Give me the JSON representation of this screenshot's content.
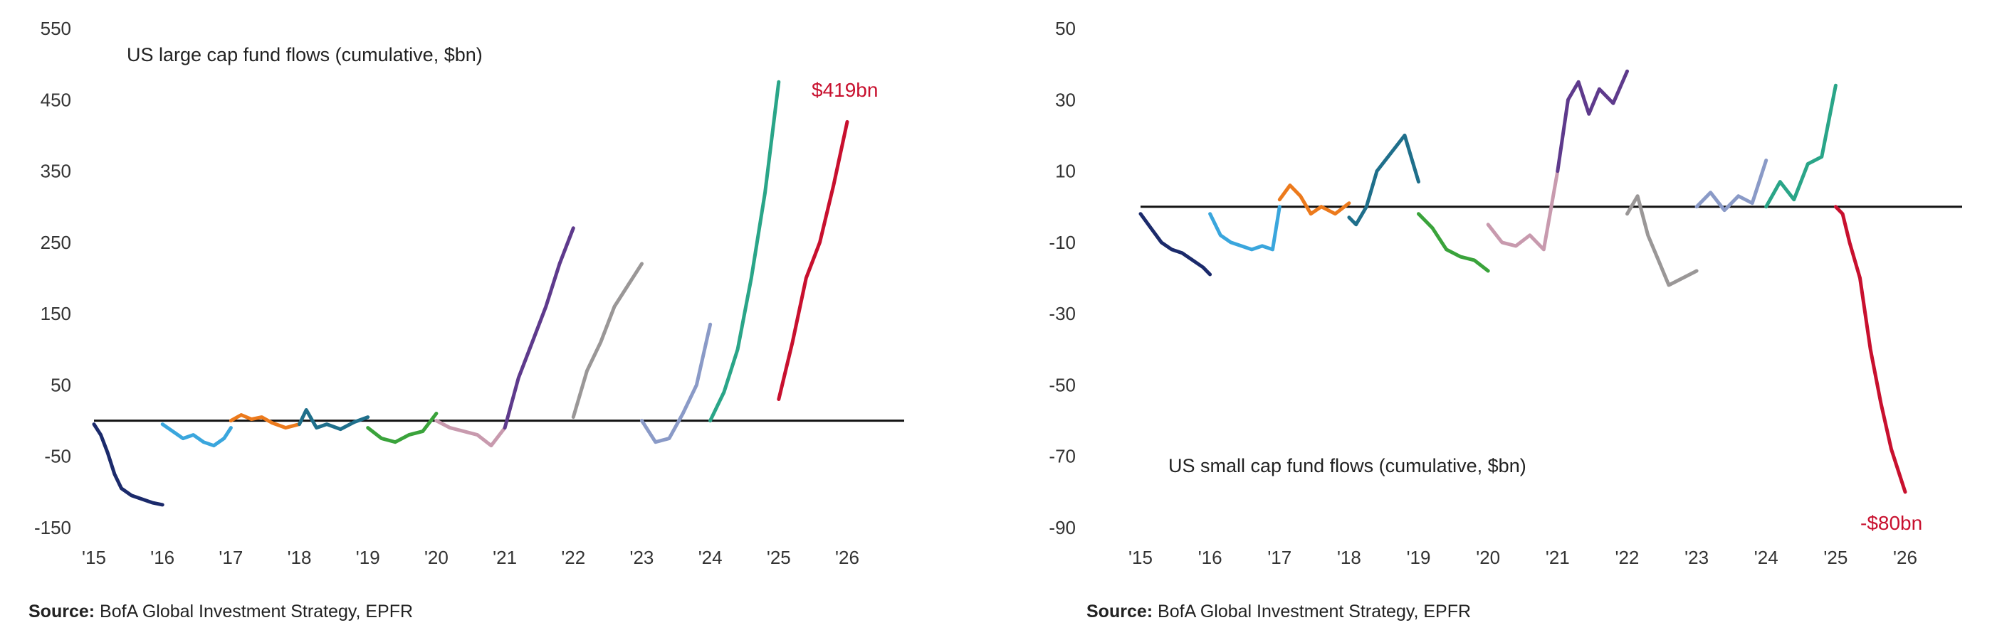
{
  "chart_data": [
    {
      "type": "line",
      "title": "US large cap fund flows (cumulative, $bn)",
      "ylim": [
        -150,
        550
      ],
      "yticks": [
        -150,
        -50,
        50,
        150,
        250,
        350,
        450,
        550
      ],
      "xlim": [
        2015,
        2027
      ],
      "xticks": [
        "'15",
        "'16",
        "'17",
        "'18",
        "'19",
        "'20",
        "'21",
        "'22",
        "'23",
        "'24",
        "'25",
        "'26"
      ],
      "end_label": "$419bn",
      "source_prefix": "Source:",
      "source_text": "BofA Global Investment Strategy, EPFR",
      "series": [
        {
          "name": "2015",
          "color": "#1b2a6b",
          "x": [
            2015.0,
            2015.1,
            2015.2,
            2015.3,
            2015.4,
            2015.55,
            2015.7,
            2015.85,
            2016.0
          ],
          "y": [
            -5,
            -20,
            -45,
            -75,
            -95,
            -105,
            -110,
            -115,
            -118
          ]
        },
        {
          "name": "2016",
          "color": "#3aa6dd",
          "x": [
            2016.0,
            2016.15,
            2016.3,
            2016.45,
            2016.6,
            2016.75,
            2016.9,
            2017.0
          ],
          "y": [
            -5,
            -15,
            -25,
            -20,
            -30,
            -35,
            -25,
            -10
          ]
        },
        {
          "name": "2017",
          "color": "#ec7a1c",
          "x": [
            2017.0,
            2017.15,
            2017.3,
            2017.45,
            2017.6,
            2017.8,
            2018.0
          ],
          "y": [
            0,
            8,
            2,
            5,
            -3,
            -10,
            -5
          ]
        },
        {
          "name": "2018",
          "color": "#1f6f8b",
          "x": [
            2018.0,
            2018.1,
            2018.25,
            2018.4,
            2018.6,
            2018.8,
            2019.0
          ],
          "y": [
            -5,
            15,
            -10,
            -5,
            -12,
            -2,
            5
          ]
        },
        {
          "name": "2019",
          "color": "#3aa33b",
          "x": [
            2019.0,
            2019.2,
            2019.4,
            2019.6,
            2019.8,
            2020.0
          ],
          "y": [
            -10,
            -25,
            -30,
            -20,
            -15,
            10
          ]
        },
        {
          "name": "2020",
          "color": "#c89aae",
          "x": [
            2020.0,
            2020.2,
            2020.4,
            2020.6,
            2020.8,
            2021.0
          ],
          "y": [
            0,
            -10,
            -15,
            -20,
            -35,
            -10
          ]
        },
        {
          "name": "2021",
          "color": "#5e3a8c",
          "x": [
            2021.0,
            2021.2,
            2021.4,
            2021.6,
            2021.8,
            2022.0
          ],
          "y": [
            -10,
            60,
            110,
            160,
            220,
            270
          ]
        },
        {
          "name": "2022",
          "color": "#9a9797",
          "x": [
            2022.0,
            2022.2,
            2022.4,
            2022.6,
            2022.8,
            2023.0
          ],
          "y": [
            5,
            70,
            110,
            160,
            190,
            220
          ]
        },
        {
          "name": "2023",
          "color": "#8a9ac7",
          "x": [
            2023.0,
            2023.2,
            2023.4,
            2023.6,
            2023.8,
            2024.0
          ],
          "y": [
            0,
            -30,
            -25,
            10,
            50,
            135
          ]
        },
        {
          "name": "2024",
          "color": "#2aa588",
          "x": [
            2024.0,
            2024.2,
            2024.4,
            2024.6,
            2024.8,
            2025.0
          ],
          "y": [
            0,
            40,
            100,
            200,
            320,
            475
          ]
        },
        {
          "name": "2025",
          "color": "#c8102e",
          "x": [
            2025.0,
            2025.2,
            2025.4,
            2025.6,
            2025.8,
            2026.0
          ],
          "y": [
            30,
            110,
            200,
            250,
            330,
            419
          ]
        }
      ]
    },
    {
      "type": "line",
      "title": "US small cap fund flows (cumulative, $bn)",
      "ylim": [
        -90,
        50
      ],
      "yticks": [
        -90,
        -70,
        -50,
        -30,
        -10,
        10,
        30,
        50
      ],
      "xlim": [
        2015,
        2027
      ],
      "xticks": [
        "'15",
        "'16",
        "'17",
        "'18",
        "'19",
        "'20",
        "'21",
        "'22",
        "'23",
        "'24",
        "'25",
        "'26"
      ],
      "end_label": "-$80bn",
      "source_prefix": "Source:",
      "source_text": "BofA Global Investment Strategy, EPFR",
      "series": [
        {
          "name": "2015",
          "color": "#1b2a6b",
          "x": [
            2015.0,
            2015.15,
            2015.3,
            2015.45,
            2015.6,
            2015.75,
            2015.9,
            2016.0
          ],
          "y": [
            -2,
            -6,
            -10,
            -12,
            -13,
            -15,
            -17,
            -19
          ]
        },
        {
          "name": "2016",
          "color": "#3aa6dd",
          "x": [
            2016.0,
            2016.15,
            2016.3,
            2016.45,
            2016.6,
            2016.75,
            2016.9,
            2017.0
          ],
          "y": [
            -2,
            -8,
            -10,
            -11,
            -12,
            -11,
            -12,
            0
          ]
        },
        {
          "name": "2017",
          "color": "#ec7a1c",
          "x": [
            2017.0,
            2017.15,
            2017.3,
            2017.45,
            2017.6,
            2017.8,
            2018.0
          ],
          "y": [
            2,
            6,
            3,
            -2,
            0,
            -2,
            1
          ]
        },
        {
          "name": "2018",
          "color": "#1f6f8b",
          "x": [
            2018.0,
            2018.1,
            2018.25,
            2018.4,
            2018.6,
            2018.8,
            2019.0
          ],
          "y": [
            -3,
            -5,
            0,
            10,
            15,
            20,
            7
          ]
        },
        {
          "name": "2019",
          "color": "#3aa33b",
          "x": [
            2019.0,
            2019.2,
            2019.4,
            2019.6,
            2019.8,
            2020.0
          ],
          "y": [
            -2,
            -6,
            -12,
            -14,
            -15,
            -18
          ]
        },
        {
          "name": "2020",
          "color": "#c89aae",
          "x": [
            2020.0,
            2020.2,
            2020.4,
            2020.6,
            2020.8,
            2021.0
          ],
          "y": [
            -5,
            -10,
            -11,
            -8,
            -12,
            10
          ]
        },
        {
          "name": "2021",
          "color": "#5e3a8c",
          "x": [
            2021.0,
            2021.15,
            2021.3,
            2021.45,
            2021.6,
            2021.8,
            2022.0
          ],
          "y": [
            10,
            30,
            35,
            26,
            33,
            29,
            38
          ]
        },
        {
          "name": "2022",
          "color": "#9a9797",
          "x": [
            2022.0,
            2022.15,
            2022.3,
            2022.45,
            2022.6,
            2022.8,
            2023.0
          ],
          "y": [
            -2,
            3,
            -8,
            -15,
            -22,
            -20,
            -18
          ]
        },
        {
          "name": "2023",
          "color": "#8a9ac7",
          "x": [
            2023.0,
            2023.2,
            2023.4,
            2023.6,
            2023.8,
            2024.0
          ],
          "y": [
            0,
            4,
            -1,
            3,
            1,
            13
          ]
        },
        {
          "name": "2024",
          "color": "#2aa588",
          "x": [
            2024.0,
            2024.2,
            2024.4,
            2024.6,
            2024.8,
            2025.0
          ],
          "y": [
            0,
            7,
            2,
            12,
            14,
            34
          ]
        },
        {
          "name": "2025",
          "color": "#c8102e",
          "x": [
            2025.0,
            2025.1,
            2025.2,
            2025.35,
            2025.5,
            2025.65,
            2025.8,
            2026.0
          ],
          "y": [
            0,
            -2,
            -10,
            -20,
            -40,
            -55,
            -68,
            -80
          ]
        }
      ]
    }
  ]
}
